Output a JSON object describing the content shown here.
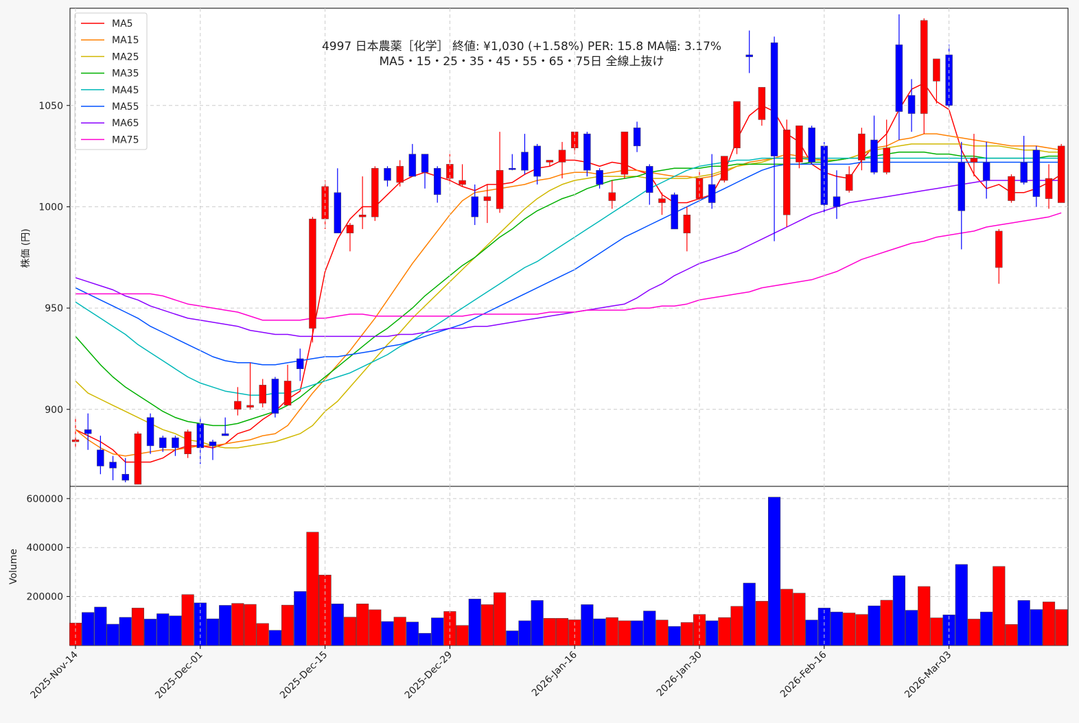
{
  "chart_data": {
    "type": "candlestick",
    "title": "4997  日本農薬［化学］ 終値: ¥1,030 (+1.58%)   PER: 15.8  MA幅: 3.17%",
    "subtitle": "MA5・15・25・35・45・55・65・75日 全線上抜け",
    "price_panel": {
      "ylabel": "株価 (円)",
      "ylim": [
        862,
        1098
      ],
      "yticks": [
        900,
        950,
        1000,
        1050
      ]
    },
    "volume_panel": {
      "ylabel": "Volume",
      "ylim": [
        0,
        650000
      ],
      "yticks": [
        200000,
        400000,
        600000
      ]
    },
    "xtick_labels": [
      {
        "i": 0,
        "label": "2025-Nov-14"
      },
      {
        "i": 10,
        "label": "2025-Dec-01"
      },
      {
        "i": 20,
        "label": "2025-Dec-15"
      },
      {
        "i": 30,
        "label": "2025-Dec-29"
      },
      {
        "i": 40,
        "label": "2026-Jan-16"
      },
      {
        "i": 50,
        "label": "2026-Jan-30"
      },
      {
        "i": 60,
        "label": "2026-Feb-16"
      },
      {
        "i": 70,
        "label": "2026-Mar-03"
      }
    ],
    "grid": true,
    "legend_position": "top-left",
    "colors": {
      "up": "#ff0000",
      "down": "#0000ff",
      "edge": "#555555"
    },
    "candles": [
      [
        884,
        896,
        881,
        885,
        "r"
      ],
      [
        890,
        898,
        880,
        888,
        "b"
      ],
      [
        880,
        887,
        868,
        872,
        "b"
      ],
      [
        874,
        877,
        865,
        871,
        "b"
      ],
      [
        868,
        876,
        864,
        865,
        "b"
      ],
      [
        863,
        889,
        863,
        888,
        "r"
      ],
      [
        896,
        898,
        878,
        882,
        "b"
      ],
      [
        886,
        887,
        879,
        881,
        "b"
      ],
      [
        886,
        887,
        877,
        881,
        "b"
      ],
      [
        878,
        890,
        876,
        889,
        "r"
      ],
      [
        893,
        896,
        873,
        881,
        "b"
      ],
      [
        884,
        885,
        875,
        882,
        "b"
      ],
      [
        888,
        896,
        887,
        887,
        "b"
      ],
      [
        900,
        911,
        897,
        904,
        "r"
      ],
      [
        901,
        923,
        900,
        902,
        "r"
      ],
      [
        903,
        915,
        901,
        912,
        "r"
      ],
      [
        915,
        916,
        896,
        898,
        "b"
      ],
      [
        902,
        922,
        902,
        914,
        "r"
      ],
      [
        925,
        930,
        914,
        920,
        "b"
      ],
      [
        940,
        995,
        933,
        994,
        "r"
      ],
      [
        994,
        1013,
        989,
        1010,
        "r"
      ],
      [
        1007,
        1019,
        987,
        987,
        "b"
      ],
      [
        987,
        992,
        978,
        991,
        "r"
      ],
      [
        995,
        1015,
        989,
        996,
        "r"
      ],
      [
        995,
        1020,
        993,
        1019,
        "r"
      ],
      [
        1019,
        1020,
        1010,
        1013,
        "b"
      ],
      [
        1012,
        1023,
        1010,
        1020,
        "r"
      ],
      [
        1026,
        1031,
        1015,
        1015,
        "b"
      ],
      [
        1026,
        1026,
        1009,
        1017,
        "b"
      ],
      [
        1019,
        1020,
        1002,
        1006,
        "b"
      ],
      [
        1014,
        1026,
        1011,
        1021,
        "r"
      ],
      [
        1011,
        1021,
        1010,
        1013,
        "r"
      ],
      [
        1005,
        1011,
        991,
        995,
        "b"
      ],
      [
        1003,
        1011,
        992,
        1005,
        "r"
      ],
      [
        999,
        1037,
        997,
        1018,
        "r"
      ],
      [
        1019,
        1026,
        1018,
        1019,
        "b"
      ],
      [
        1027,
        1036,
        1016,
        1018,
        "b"
      ],
      [
        1030,
        1031,
        1011,
        1015,
        "b"
      ],
      [
        1022,
        1023,
        1020,
        1023,
        "r"
      ],
      [
        1022,
        1032,
        1014,
        1028,
        "r"
      ],
      [
        1029,
        1037,
        1026,
        1037,
        "r"
      ],
      [
        1036,
        1037,
        1015,
        1018,
        "b"
      ],
      [
        1018,
        1019,
        1009,
        1011,
        "b"
      ],
      [
        1003,
        1013,
        999,
        1007,
        "r"
      ],
      [
        1016,
        1037,
        1014,
        1037,
        "r"
      ],
      [
        1039,
        1042,
        1027,
        1030,
        "b"
      ],
      [
        1020,
        1021,
        1001,
        1007,
        "b"
      ],
      [
        1002,
        1007,
        996,
        1004,
        "r"
      ],
      [
        1006,
        1007,
        989,
        989,
        "b"
      ],
      [
        987,
        1000,
        978,
        996,
        "r"
      ],
      [
        1004,
        1018,
        1002,
        1014,
        "r"
      ],
      [
        1011,
        1026,
        999,
        1002,
        "b"
      ],
      [
        1013,
        1025,
        1012,
        1025,
        "r"
      ],
      [
        1029,
        1052,
        1026,
        1052,
        "r"
      ],
      [
        1075,
        1087,
        1066,
        1074,
        "b"
      ],
      [
        1043,
        1059,
        1040,
        1059,
        "r"
      ],
      [
        1081,
        1084,
        983,
        1025,
        "b"
      ],
      [
        996,
        1043,
        990,
        1038,
        "r"
      ],
      [
        1022,
        1040,
        1019,
        1040,
        "r"
      ],
      [
        1039,
        1040,
        1021,
        1022,
        "b"
      ],
      [
        1030,
        1032,
        997,
        1001,
        "b"
      ],
      [
        1005,
        1018,
        994,
        1000,
        "b"
      ],
      [
        1008,
        1020,
        1007,
        1016,
        "r"
      ],
      [
        1023,
        1039,
        1018,
        1036,
        "r"
      ],
      [
        1033,
        1045,
        1016,
        1017,
        "b"
      ],
      [
        1017,
        1043,
        1016,
        1029,
        "r"
      ],
      [
        1080,
        1095,
        1033,
        1047,
        "b"
      ],
      [
        1055,
        1063,
        1037,
        1046,
        "b"
      ],
      [
        1046,
        1093,
        1036,
        1092,
        "r"
      ],
      [
        1062,
        1073,
        1051,
        1073,
        "r"
      ],
      [
        1075,
        1080,
        1049,
        1050,
        "b"
      ],
      [
        1022,
        1032,
        979,
        998,
        "b"
      ],
      [
        1022,
        1036,
        1015,
        1024,
        "r"
      ],
      [
        1022,
        1032,
        1004,
        1013,
        "b"
      ],
      [
        970,
        989,
        962,
        988,
        "r"
      ],
      [
        1003,
        1016,
        1002,
        1015,
        "r"
      ],
      [
        1022,
        1035,
        1011,
        1012,
        "b"
      ],
      [
        1028,
        1030,
        1000,
        1005,
        "b"
      ],
      [
        1004,
        1021,
        999,
        1014,
        "r"
      ],
      [
        1002,
        1031,
        1002,
        1030,
        "r"
      ]
    ],
    "volume": [
      92000,
      135000,
      157000,
      87000,
      115000,
      153000,
      108000,
      130000,
      121000,
      208000,
      174000,
      109000,
      164000,
      172000,
      168000,
      90000,
      62000,
      165000,
      221000,
      463000,
      288000,
      170000,
      116000,
      170000,
      146000,
      98000,
      116000,
      96000,
      50000,
      113000,
      139000,
      82000,
      190000,
      167000,
      216000,
      60000,
      101000,
      184000,
      111000,
      111000,
      105000,
      167000,
      109000,
      114000,
      101000,
      101000,
      141000,
      104000,
      78000,
      94000,
      127000,
      101000,
      114000,
      160000,
      255000,
      181000,
      606000,
      230000,
      214000,
      104000,
      153000,
      137000,
      133000,
      127000,
      162000,
      185000,
      285000,
      144000,
      241000,
      113000,
      125000,
      331000,
      108000,
      137000,
      323000,
      86000,
      184000,
      147000,
      178000,
      147000
    ],
    "series": [
      {
        "name": "MA5",
        "color": "#ff0000",
        "values": [
          890,
          887,
          884,
          880,
          874,
          874,
          874,
          876,
          880,
          882,
          882,
          881,
          883,
          888,
          890,
          895,
          899,
          905,
          909,
          937,
          968,
          984,
          994,
          1000,
          1000,
          1006,
          1012,
          1015,
          1017,
          1015,
          1013,
          1010,
          1008,
          1011,
          1011,
          1012,
          1016,
          1019,
          1020,
          1023,
          1023,
          1022,
          1020,
          1022,
          1021,
          1018,
          1016,
          1006,
          1002,
          1002,
          1004,
          1006,
          1017,
          1033,
          1045,
          1050,
          1047,
          1036,
          1032,
          1021,
          1017,
          1015,
          1014,
          1023,
          1030,
          1036,
          1048,
          1058,
          1061,
          1052,
          1048,
          1028,
          1016,
          1009,
          1011,
          1007,
          1007,
          1009,
          1012,
          1016
        ]
      },
      {
        "name": "MA15",
        "color": "#ff8000",
        "values": [
          890,
          885,
          881,
          878,
          877,
          878,
          879,
          880,
          880,
          881,
          882,
          882,
          883,
          884,
          885,
          887,
          888,
          892,
          900,
          908,
          915,
          922,
          929,
          937,
          945,
          954,
          963,
          972,
          980,
          988,
          996,
          1003,
          1007,
          1008,
          1009,
          1010,
          1011,
          1013,
          1014,
          1016,
          1017,
          1017,
          1016,
          1017,
          1018,
          1018,
          1017,
          1016,
          1015,
          1015,
          1014,
          1015,
          1017,
          1020,
          1022,
          1023,
          1024,
          1026,
          1025,
          1024,
          1023,
          1023,
          1024,
          1026,
          1029,
          1030,
          1033,
          1034,
          1036,
          1036,
          1035,
          1034,
          1033,
          1032,
          1031,
          1030,
          1030,
          1030,
          1029,
          1028
        ]
      },
      {
        "name": "MA25",
        "color": "#d0b800",
        "values": [
          914,
          908,
          905,
          902,
          899,
          896,
          893,
          890,
          888,
          885,
          884,
          882,
          881,
          881,
          882,
          883,
          884,
          886,
          888,
          892,
          899,
          904,
          911,
          918,
          925,
          932,
          938,
          945,
          951,
          957,
          963,
          969,
          975,
          981,
          987,
          993,
          999,
          1004,
          1008,
          1011,
          1013,
          1014,
          1015,
          1015,
          1015,
          1015,
          1014,
          1014,
          1014,
          1014,
          1015,
          1016,
          1018,
          1020,
          1021,
          1022,
          1024,
          1024,
          1024,
          1023,
          1023,
          1023,
          1024,
          1026,
          1028,
          1029,
          1030,
          1031,
          1031,
          1031,
          1031,
          1031,
          1030,
          1030,
          1030,
          1029,
          1028,
          1028,
          1027,
          1027
        ]
      },
      {
        "name": "MA35",
        "color": "#00b000",
        "values": [
          936,
          929,
          922,
          916,
          911,
          907,
          903,
          899,
          896,
          894,
          893,
          892,
          892,
          893,
          895,
          897,
          899,
          902,
          906,
          911,
          916,
          921,
          926,
          931,
          936,
          940,
          945,
          950,
          956,
          961,
          966,
          971,
          975,
          980,
          985,
          989,
          994,
          998,
          1001,
          1004,
          1006,
          1009,
          1011,
          1013,
          1014,
          1015,
          1017,
          1018,
          1019,
          1019,
          1019,
          1020,
          1020,
          1021,
          1021,
          1021,
          1021,
          1021,
          1021,
          1022,
          1022,
          1023,
          1024,
          1024,
          1025,
          1026,
          1027,
          1027,
          1027,
          1026,
          1026,
          1025,
          1025,
          1024,
          1024,
          1024,
          1024,
          1024,
          1025,
          1025
        ]
      },
      {
        "name": "MA45",
        "color": "#00b8b8",
        "values": [
          953,
          949,
          945,
          941,
          937,
          932,
          928,
          924,
          920,
          916,
          913,
          911,
          909,
          908,
          907,
          907,
          908,
          908,
          910,
          912,
          914,
          916,
          918,
          921,
          924,
          927,
          931,
          934,
          938,
          942,
          946,
          950,
          954,
          958,
          962,
          966,
          970,
          973,
          977,
          981,
          985,
          989,
          993,
          997,
          1001,
          1005,
          1009,
          1012,
          1015,
          1018,
          1020,
          1021,
          1022,
          1023,
          1023,
          1024,
          1024,
          1024,
          1024,
          1024,
          1024,
          1024,
          1024,
          1024,
          1024,
          1024,
          1024,
          1024,
          1024,
          1024,
          1024,
          1024,
          1024,
          1024,
          1024,
          1024,
          1024,
          1024,
          1024,
          1024
        ]
      },
      {
        "name": "MA55",
        "color": "#0050ff",
        "values": [
          960,
          957,
          954,
          951,
          948,
          945,
          941,
          938,
          935,
          932,
          929,
          926,
          924,
          923,
          923,
          922,
          922,
          923,
          924,
          925,
          926,
          926,
          927,
          928,
          929,
          931,
          932,
          934,
          936,
          938,
          940,
          942,
          945,
          948,
          951,
          954,
          957,
          960,
          963,
          966,
          969,
          973,
          977,
          981,
          985,
          988,
          991,
          994,
          997,
          1000,
          1003,
          1006,
          1009,
          1012,
          1015,
          1018,
          1020,
          1021,
          1021,
          1021,
          1021,
          1021,
          1021,
          1022,
          1022,
          1022,
          1022,
          1022,
          1022,
          1022,
          1022,
          1022,
          1022,
          1022,
          1022,
          1022,
          1022,
          1022,
          1022,
          1022
        ]
      },
      {
        "name": "MA65",
        "color": "#8a00ff",
        "values": [
          965,
          963,
          961,
          959,
          956,
          954,
          951,
          949,
          947,
          945,
          944,
          943,
          942,
          941,
          939,
          938,
          937,
          937,
          936,
          936,
          936,
          936,
          936,
          936,
          936,
          936,
          937,
          937,
          938,
          939,
          940,
          940,
          941,
          941,
          942,
          943,
          944,
          945,
          946,
          947,
          948,
          949,
          950,
          951,
          952,
          955,
          959,
          962,
          966,
          969,
          972,
          974,
          976,
          978,
          981,
          984,
          987,
          990,
          993,
          996,
          998,
          1000,
          1002,
          1003,
          1004,
          1005,
          1006,
          1007,
          1008,
          1009,
          1010,
          1011,
          1012,
          1013,
          1013,
          1013,
          1013,
          1013,
          1013,
          1013
        ]
      },
      {
        "name": "MA75",
        "color": "#ff00d0",
        "values": [
          957,
          957,
          957,
          957,
          957,
          957,
          957,
          956,
          954,
          952,
          951,
          950,
          949,
          948,
          946,
          944,
          944,
          944,
          944,
          945,
          945,
          946,
          947,
          947,
          946,
          946,
          946,
          946,
          946,
          946,
          946,
          946,
          947,
          947,
          947,
          947,
          947,
          947,
          948,
          948,
          948,
          949,
          949,
          949,
          949,
          950,
          950,
          951,
          951,
          952,
          954,
          955,
          956,
          957,
          958,
          960,
          961,
          962,
          963,
          964,
          966,
          968,
          971,
          974,
          976,
          978,
          980,
          982,
          983,
          985,
          986,
          987,
          988,
          990,
          991,
          992,
          993,
          994,
          995,
          997
        ]
      }
    ]
  }
}
